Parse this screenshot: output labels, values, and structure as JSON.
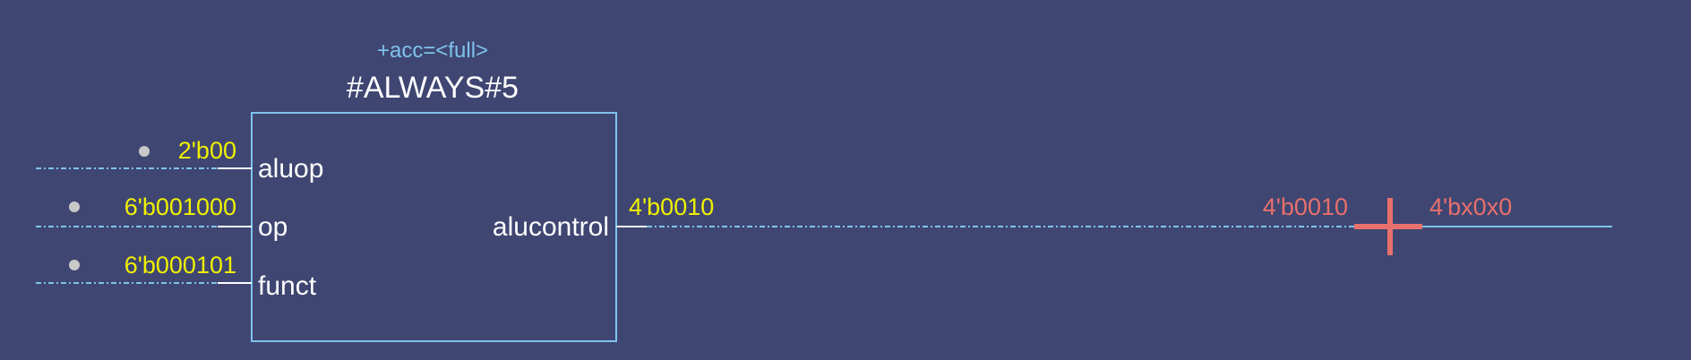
{
  "block": {
    "attribute": "+acc=<full>",
    "name": "#ALWAYS#5",
    "inputs": [
      {
        "port": "aluop",
        "value": "2'b00"
      },
      {
        "port": "op",
        "value": "6'b001000"
      },
      {
        "port": "funct",
        "value": "6'b000101"
      }
    ],
    "output": {
      "port": "alucontrol",
      "value": "4'b0010"
    }
  },
  "cursor": {
    "left_value": "4'b0010",
    "right_value": "4'bx0x0"
  },
  "colors": {
    "background": "#3f4672",
    "block_outline": "#7ec3ec",
    "wire": "#7ec3ec",
    "port_text": "#ffffff",
    "value_text": "#f0f000",
    "cursor": "#e8706c",
    "pin_dot": "#c9c9c9"
  }
}
